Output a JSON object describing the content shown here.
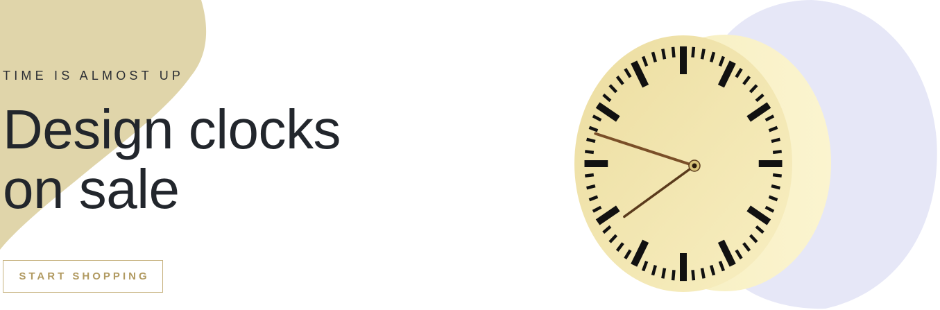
{
  "hero": {
    "eyebrow": "TIME IS ALMOST UP",
    "headline_line1": "Design clocks",
    "headline_line2": "on sale",
    "cta_label": "START SHOPPING"
  },
  "colors": {
    "left_blob": "#e0d5aa",
    "right_blob": "#e6e7f7",
    "clock_face": "#f3e7ad",
    "cta_text": "#b19a61",
    "cta_border": "#c6b17e",
    "headline": "#22262c"
  },
  "clock": {
    "hour": 7,
    "minute": 48
  }
}
